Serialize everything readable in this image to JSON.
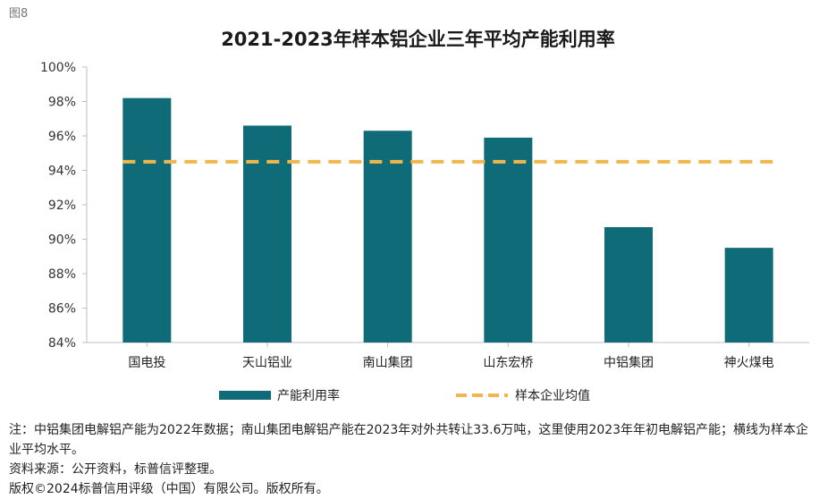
{
  "figure_label": "图8",
  "chart_data": {
    "type": "bar",
    "title": "2021-2023年样本铝企业三年平均产能利用率",
    "categories": [
      "国电投",
      "天山铝业",
      "南山集团",
      "山东宏桥",
      "中铝集团",
      "神火煤电"
    ],
    "series": [
      {
        "name": "产能利用率",
        "kind": "bar",
        "values": [
          98.2,
          96.6,
          96.3,
          95.9,
          90.7,
          89.5
        ]
      },
      {
        "name": "样本企业均值",
        "kind": "line",
        "style": "dashed",
        "values": [
          94.5,
          94.5,
          94.5,
          94.5,
          94.5,
          94.5
        ]
      }
    ],
    "yticks": [
      "84%",
      "86%",
      "88%",
      "90%",
      "92%",
      "94%",
      "96%",
      "98%",
      "100%"
    ],
    "ylim": [
      84,
      100
    ],
    "xlabel": "",
    "ylabel": "",
    "legend_position": "bottom",
    "colors": {
      "bar": "#0f6b78",
      "line": "#f0b84b"
    }
  },
  "notes": {
    "note": "注：中铝集团电解铝产能为2022年数据；南山集团电解铝产能在2023年对外共转让33.6万吨，这里使用2023年年初电解铝产能；横线为样本企业平均水平。",
    "source": "资料来源：公开资料，标普信评整理。",
    "copyright": "版权©2024标普信用评级（中国）有限公司。版权所有。"
  }
}
